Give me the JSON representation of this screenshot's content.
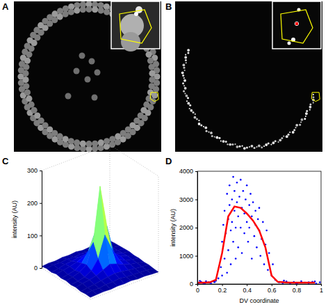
{
  "panel_labels": [
    "A",
    "B",
    "C",
    "D"
  ],
  "chart_data": [
    {
      "type": "surface",
      "zlabel": "intensity (AU)",
      "zlim": [
        0,
        300
      ],
      "zticks": [
        0,
        100,
        200,
        300
      ],
      "z": [
        [
          5,
          8,
          6,
          10,
          7,
          9,
          6,
          8,
          5,
          7,
          6
        ],
        [
          7,
          12,
          10,
          14,
          11,
          13,
          9,
          12,
          8,
          10,
          7
        ],
        [
          6,
          10,
          15,
          18,
          16,
          20,
          14,
          15,
          11,
          9,
          8
        ],
        [
          9,
          13,
          17,
          24,
          30,
          35,
          26,
          20,
          14,
          12,
          7
        ],
        [
          8,
          11,
          20,
          32,
          60,
          95,
          55,
          30,
          18,
          13,
          9
        ],
        [
          10,
          14,
          22,
          38,
          110,
          260,
          120,
          40,
          21,
          15,
          8
        ],
        [
          7,
          12,
          18,
          30,
          65,
          130,
          70,
          33,
          19,
          12,
          10
        ],
        [
          9,
          10,
          16,
          22,
          28,
          40,
          30,
          24,
          15,
          11,
          7
        ],
        [
          6,
          11,
          13,
          17,
          20,
          22,
          18,
          16,
          12,
          10,
          8
        ],
        [
          8,
          9,
          11,
          12,
          14,
          15,
          13,
          12,
          10,
          9,
          6
        ],
        [
          5,
          7,
          8,
          9,
          10,
          8,
          9,
          7,
          8,
          6,
          5
        ]
      ]
    },
    {
      "type": "scatter",
      "xlabel": "DV coordinate",
      "ylabel": "intensity (AU)",
      "xlim": [
        0,
        1
      ],
      "ylim": [
        0,
        4000
      ],
      "xticks": [
        0,
        0.2,
        0.4,
        0.6,
        0.8,
        1
      ],
      "yticks": [
        0,
        1000,
        2000,
        3000,
        4000
      ],
      "series": [
        {
          "type": "scatter",
          "marker": "dot",
          "color": "#0000ff",
          "x": [
            0.01,
            0.03,
            0.05,
            0.07,
            0.09,
            0.11,
            0.13,
            0.15,
            0.17,
            0.63,
            0.66,
            0.69,
            0.72,
            0.75,
            0.78,
            0.81,
            0.84,
            0.87,
            0.9,
            0.93,
            0.96,
            0.99,
            0.02,
            0.06,
            0.1,
            0.14,
            0.7,
            0.8,
            0.9,
            0.95,
            0.19,
            0.2,
            0.2,
            0.21,
            0.22,
            0.22,
            0.23,
            0.24,
            0.24,
            0.25,
            0.25,
            0.26,
            0.26,
            0.27,
            0.27,
            0.28,
            0.28,
            0.29,
            0.29,
            0.3,
            0.3,
            0.31,
            0.31,
            0.32,
            0.32,
            0.33,
            0.33,
            0.34,
            0.35,
            0.35,
            0.36,
            0.36,
            0.37,
            0.38,
            0.38,
            0.39,
            0.4,
            0.4,
            0.41,
            0.42,
            0.42,
            0.43,
            0.44,
            0.44,
            0.45,
            0.46,
            0.47,
            0.47,
            0.48,
            0.49,
            0.5,
            0.5,
            0.51,
            0.52,
            0.53,
            0.54,
            0.55,
            0.56,
            0.57,
            0.58,
            0.6,
            0.61
          ],
          "values": [
            40,
            80,
            20,
            100,
            60,
            30,
            90,
            120,
            200,
            150,
            60,
            30,
            90,
            20,
            70,
            40,
            100,
            50,
            30,
            80,
            20,
            60,
            110,
            10,
            50,
            70,
            120,
            10,
            60,
            90,
            600,
            1500,
            300,
            2100,
            900,
            2600,
            1800,
            3200,
            400,
            2300,
            1200,
            3500,
            2800,
            1900,
            700,
            3000,
            2200,
            3800,
            1500,
            2600,
            3300,
            900,
            2000,
            3600,
            2900,
            2400,
            1300,
            3100,
            2000,
            3700,
            2700,
            1100,
            3300,
            2500,
            1800,
            3000,
            2200,
            3500,
            1500,
            2800,
            2000,
            3200,
            2400,
            900,
            2900,
            1700,
            2600,
            2100,
            1300,
            2300,
            1900,
            2700,
            1000,
            1600,
            2200,
            700,
            1400,
            1900,
            500,
            1100,
            300,
            700
          ]
        },
        {
          "type": "line",
          "line_style": "solid",
          "color": "#ff0000",
          "x": [
            0,
            0.05,
            0.1,
            0.15,
            0.2,
            0.25,
            0.3,
            0.35,
            0.4,
            0.45,
            0.5,
            0.55,
            0.6,
            0.65,
            0.7,
            0.75,
            0.8,
            0.85,
            0.9,
            0.95
          ],
          "values": [
            50,
            50,
            60,
            150,
            1100,
            2400,
            2750,
            2700,
            2500,
            2250,
            1900,
            1300,
            300,
            80,
            60,
            50,
            50,
            50,
            50,
            50
          ]
        }
      ]
    }
  ]
}
